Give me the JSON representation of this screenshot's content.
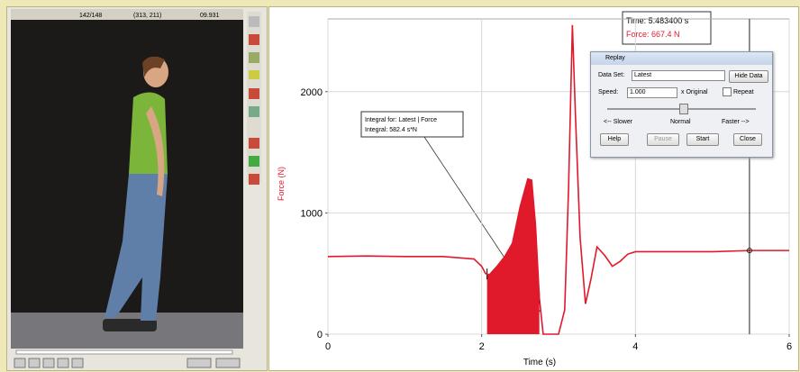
{
  "video_panel": {
    "frame": "142/148",
    "coords": "(313, 211)",
    "time": "09.931"
  },
  "chart_data": {
    "type": "line",
    "x_label": "Time (s)",
    "y_label": "Force (N)",
    "xlim": [
      0,
      6
    ],
    "ylim": [
      0,
      2600
    ],
    "xticks": [
      0,
      2,
      4,
      6
    ],
    "yticks": [
      0,
      1000,
      2000
    ],
    "grid": true,
    "color": "#e0192b",
    "x": [
      0,
      0.5,
      1.0,
      1.5,
      1.9,
      2.0,
      2.05,
      2.1,
      2.2,
      2.3,
      2.4,
      2.5,
      2.6,
      2.65,
      2.7,
      2.75,
      2.8,
      3.0,
      3.08,
      3.13,
      3.18,
      3.22,
      3.28,
      3.35,
      3.42,
      3.5,
      3.6,
      3.7,
      3.8,
      3.9,
      4.0,
      4.5,
      5.0,
      5.5,
      6.0
    ],
    "values": [
      640,
      645,
      640,
      640,
      620,
      560,
      500,
      490,
      560,
      640,
      750,
      1050,
      1280,
      1270,
      900,
      300,
      0,
      0,
      200,
      1200,
      2550,
      1800,
      800,
      250,
      450,
      720,
      650,
      560,
      600,
      660,
      680,
      680,
      680,
      690,
      690
    ],
    "integral_range": [
      2.07,
      2.75
    ],
    "cursor_x": 5.4834,
    "annotations": {
      "integral_title": "Integral for: Latest | Force",
      "integral_value": "Integral: 582.4 s*N",
      "time": "Time: 5.483400 s",
      "force": "Force: 667.4 N"
    }
  },
  "replay_dialog": {
    "title": "Replay",
    "data_set_label": "Data Set:",
    "data_set": "Latest",
    "hide_data": "Hide Data",
    "speed_label": "Speed:",
    "speed": "1.000",
    "speed_unit": "x Original",
    "repeat": "Repeat",
    "slower": "<-- Slower",
    "normal": "Normal",
    "faster": "Faster -->",
    "help": "Help",
    "pause": "Pause",
    "start": "Start",
    "close": "Close"
  }
}
